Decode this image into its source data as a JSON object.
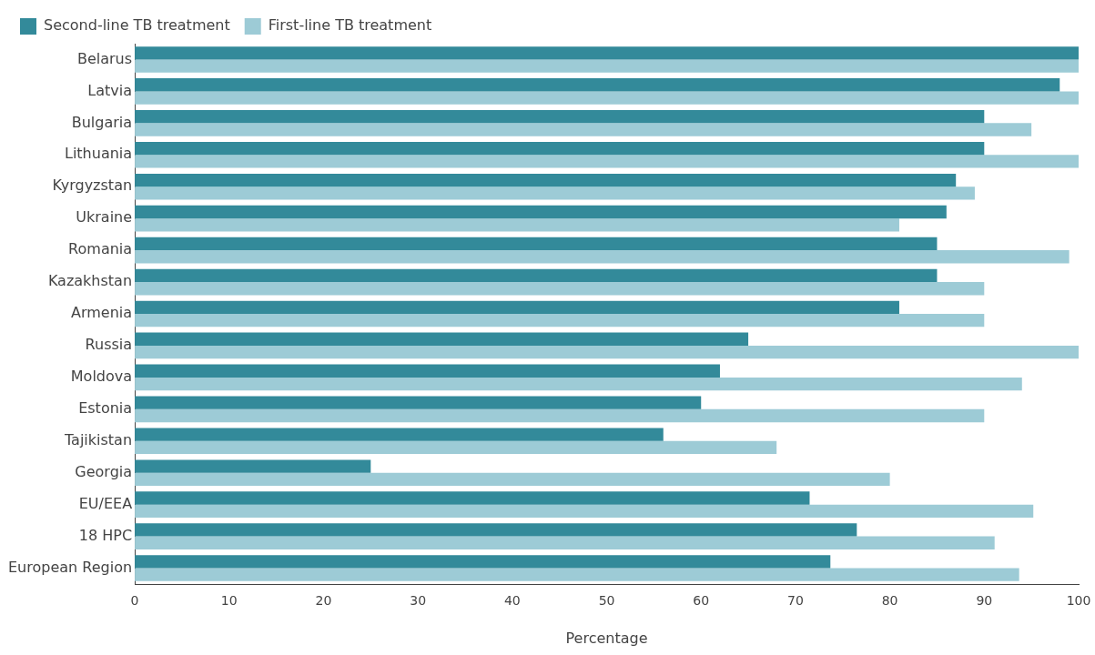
{
  "chart_data": {
    "type": "bar",
    "orientation": "horizontal",
    "xlabel": "Percentage",
    "categories": [
      "Belarus",
      "Latvia",
      "Bulgaria",
      "Lithuania",
      "Kyrgyzstan",
      "Ukraine",
      "Romania",
      "Kazakhstan",
      "Armenia",
      "Russia",
      "Moldova",
      "Estonia",
      "Tajikistan",
      "Georgia",
      "EU/EEA",
      "18 HPC",
      "European Region"
    ],
    "series": [
      {
        "name": "Second-line TB treatment",
        "color": "#338a9a",
        "values": [
          100,
          98,
          90,
          90,
          87,
          86,
          85,
          85,
          81,
          65,
          62,
          60,
          56,
          25,
          71.5,
          76.5,
          73.7
        ]
      },
      {
        "name": "First-line TB treatment",
        "color": "#9dcbd6",
        "values": [
          100,
          100,
          95,
          100,
          89,
          81,
          99,
          90,
          90,
          100,
          94,
          90,
          68,
          80,
          95.2,
          91.1,
          93.7
        ]
      }
    ],
    "xlim": [
      0,
      100
    ],
    "xticks": [
      0,
      10,
      20,
      30,
      40,
      50,
      60,
      70,
      80,
      90,
      100
    ],
    "grid": false,
    "legend": "top left"
  }
}
